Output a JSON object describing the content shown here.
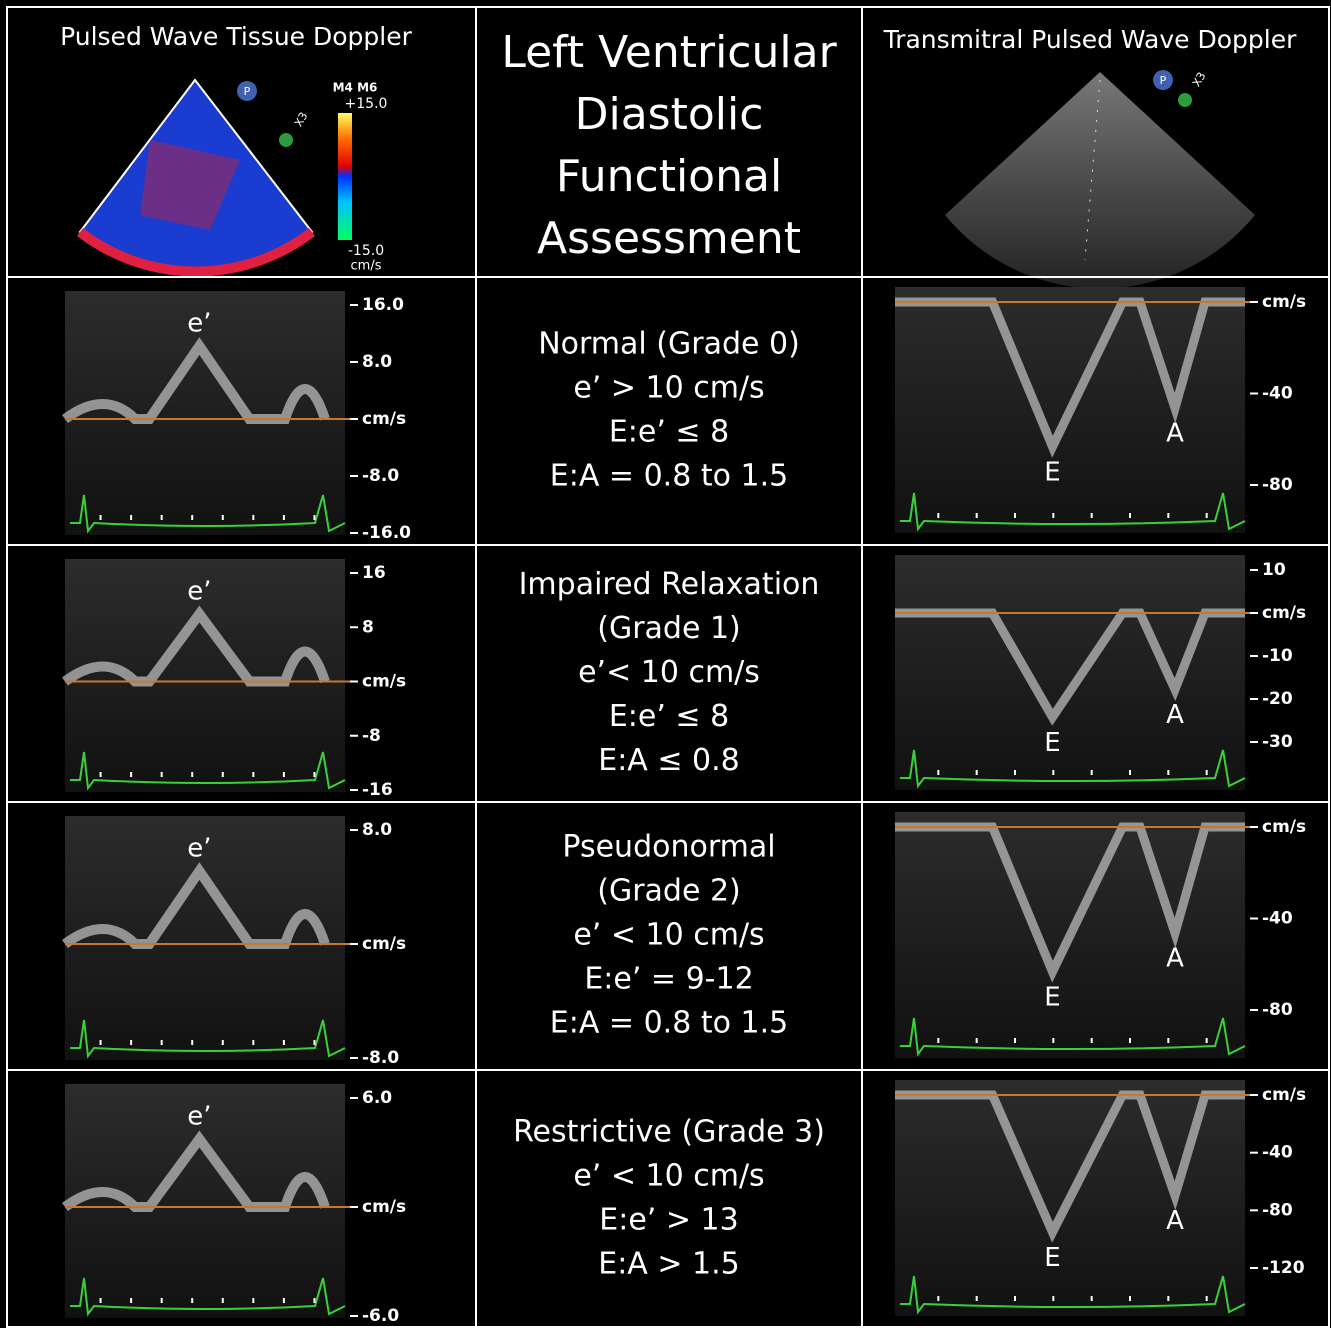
{
  "header": {
    "left_title": "Pulsed Wave Tissue Doppler",
    "center_title": [
      "Left Ventricular",
      "Diastolic",
      "Functional",
      "Assessment"
    ],
    "right_title": "Transmitral Pulsed Wave Doppler",
    "color_scale": {
      "mode": "M4 M6",
      "max": "+15.0",
      "min": "-15.0",
      "unit": "cm/s"
    },
    "probe_icon": "P",
    "zoom": "X3"
  },
  "rows": [
    {
      "tissue": {
        "peak_label": "e’",
        "ticks": [
          "16.0",
          "8.0",
          "cm/s",
          "-8.0",
          "-16.0"
        ]
      },
      "criteria": [
        "Normal (Grade 0)",
        "e’ > 10 cm/s",
        "E:e’ ≤ 8",
        "E:A = 0.8 to 1.5"
      ],
      "transmitral": {
        "e_label": "E",
        "a_label": "A",
        "ticks": [
          "cm/s",
          "-40",
          "-80"
        ]
      }
    },
    {
      "tissue": {
        "peak_label": "e’",
        "ticks": [
          "16",
          "8",
          "cm/s",
          "-8",
          "-16"
        ]
      },
      "criteria": [
        "Impaired Relaxation",
        "(Grade 1)",
        "e’< 10 cm/s",
        "E:e’ ≤ 8",
        "E:A ≤ 0.8"
      ],
      "transmitral": {
        "e_label": "E",
        "a_label": "A",
        "ticks": [
          "10",
          "cm/s",
          "-10",
          "-20",
          "-30"
        ]
      }
    },
    {
      "tissue": {
        "peak_label": "e’",
        "ticks": [
          "8.0",
          "cm/s",
          "-8.0"
        ]
      },
      "criteria": [
        "Pseudonormal",
        "(Grade 2)",
        "e’ < 10 cm/s",
        "E:e’ = 9-12",
        "E:A = 0.8 to 1.5"
      ],
      "transmitral": {
        "e_label": "E",
        "a_label": "A",
        "ticks": [
          "cm/s",
          "-40",
          "-80"
        ]
      }
    },
    {
      "tissue": {
        "peak_label": "e’",
        "ticks": [
          "6.0",
          "cm/s",
          "-6.0"
        ]
      },
      "criteria": [
        "Restrictive (Grade 3)",
        "e’ < 10 cm/s",
        "E:e’ > 13",
        "E:A > 1.5"
      ],
      "transmitral": {
        "e_label": "E",
        "a_label": "A",
        "ticks": [
          "cm/s",
          "-40",
          "-80",
          "-120"
        ]
      }
    }
  ]
}
